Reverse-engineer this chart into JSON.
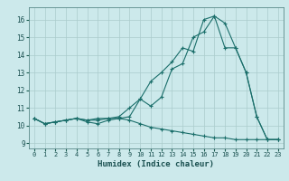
{
  "xlabel": "Humidex (Indice chaleur)",
  "bg_color": "#cce9eb",
  "grid_color": "#aacccc",
  "line_color": "#1a6e6a",
  "xlim": [
    -0.5,
    23.5
  ],
  "ylim": [
    8.7,
    16.7
  ],
  "yticks": [
    9,
    10,
    11,
    12,
    13,
    14,
    15,
    16
  ],
  "xticks": [
    0,
    1,
    2,
    3,
    4,
    5,
    6,
    7,
    8,
    9,
    10,
    11,
    12,
    13,
    14,
    15,
    16,
    17,
    18,
    19,
    20,
    21,
    22,
    23
  ],
  "series": [
    {
      "x": [
        0,
        1,
        2,
        3,
        4,
        5,
        6,
        7,
        8,
        9,
        10,
        11,
        12,
        13,
        14,
        15,
        16,
        17,
        18,
        19,
        20,
        21,
        22,
        23
      ],
      "y": [
        10.4,
        10.1,
        10.2,
        10.3,
        10.4,
        10.3,
        10.4,
        10.4,
        10.4,
        10.5,
        11.5,
        11.1,
        11.6,
        13.2,
        13.5,
        15.0,
        15.3,
        16.2,
        15.8,
        14.4,
        13.0,
        10.5,
        9.2,
        9.2
      ]
    },
    {
      "x": [
        0,
        1,
        2,
        3,
        4,
        5,
        6,
        7,
        8,
        9,
        10,
        11,
        12,
        13,
        14,
        15,
        16,
        17,
        18,
        19,
        20,
        21,
        22,
        23
      ],
      "y": [
        10.4,
        10.1,
        10.2,
        10.3,
        10.4,
        10.3,
        10.3,
        10.4,
        10.5,
        11.0,
        11.5,
        12.5,
        13.0,
        13.6,
        14.4,
        14.2,
        16.0,
        16.2,
        14.4,
        14.4,
        13.0,
        10.5,
        9.2,
        9.2
      ]
    },
    {
      "x": [
        0,
        1,
        2,
        3,
        4,
        5,
        6,
        7,
        8,
        9,
        10,
        11,
        12,
        13,
        14,
        15,
        16,
        17,
        18,
        19,
        20,
        21,
        22,
        23
      ],
      "y": [
        10.4,
        10.1,
        10.2,
        10.3,
        10.4,
        10.2,
        10.1,
        10.3,
        10.4,
        10.3,
        10.1,
        9.9,
        9.8,
        9.7,
        9.6,
        9.5,
        9.4,
        9.3,
        9.3,
        9.2,
        9.2,
        9.2,
        9.2,
        9.2
      ]
    }
  ]
}
